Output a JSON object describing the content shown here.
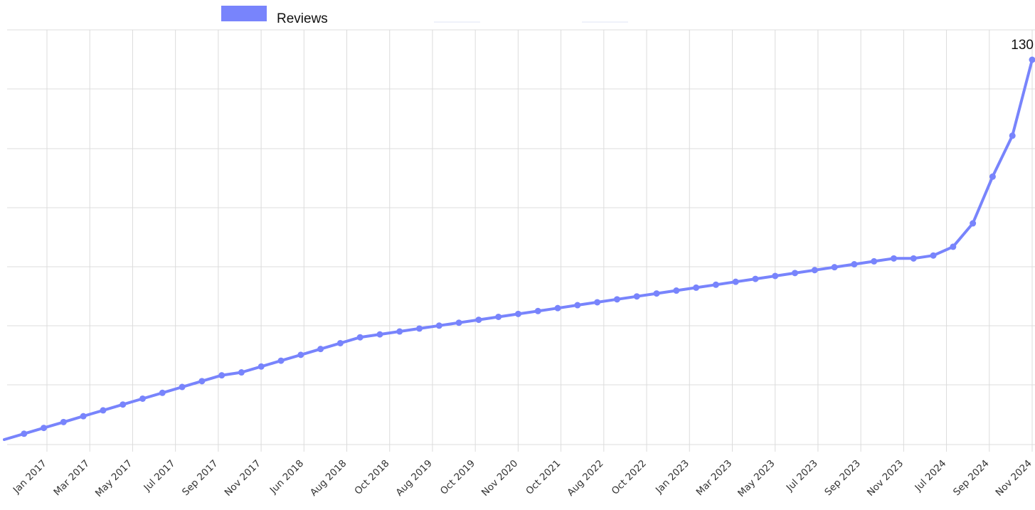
{
  "chart_data": {
    "type": "line",
    "title": "",
    "xlabel": "",
    "ylabel": "",
    "legend": {
      "position": "top-left",
      "entries": [
        "Reviews"
      ]
    },
    "grid": true,
    "ylim": [
      0,
      130
    ],
    "x_tick_labels": [
      "Jan 2017",
      "Mar 2017",
      "May 2017",
      "Jul 2017",
      "Sep 2017",
      "Nov 2017",
      "Jun 2018",
      "Aug 2018",
      "Oct 2018",
      "Aug 2019",
      "Oct 2019",
      "Nov 2020",
      "Oct 2021",
      "Aug 2022",
      "Oct 2022",
      "Jan 2023",
      "Mar 2023",
      "May 2023",
      "Jul 2023",
      "Sep 2023",
      "Nov 2023",
      "Jul 2024",
      "Sep 2024",
      "Nov 2024"
    ],
    "series": [
      {
        "name": "Reviews",
        "color": "#7884fc",
        "values": [
          0,
          2,
          4,
          6,
          8,
          10,
          12,
          14,
          16,
          18,
          20,
          22,
          23,
          25,
          27,
          29,
          31,
          33,
          35,
          36,
          37,
          38,
          39,
          40,
          41,
          42,
          43,
          44,
          45,
          46,
          47,
          48,
          49,
          50,
          51,
          52,
          53,
          54,
          55,
          56,
          57,
          58,
          59,
          60,
          61,
          62,
          62,
          63,
          66,
          74,
          90,
          104,
          130
        ]
      }
    ],
    "data_labels": [
      {
        "index": 52,
        "text": "130"
      }
    ]
  }
}
